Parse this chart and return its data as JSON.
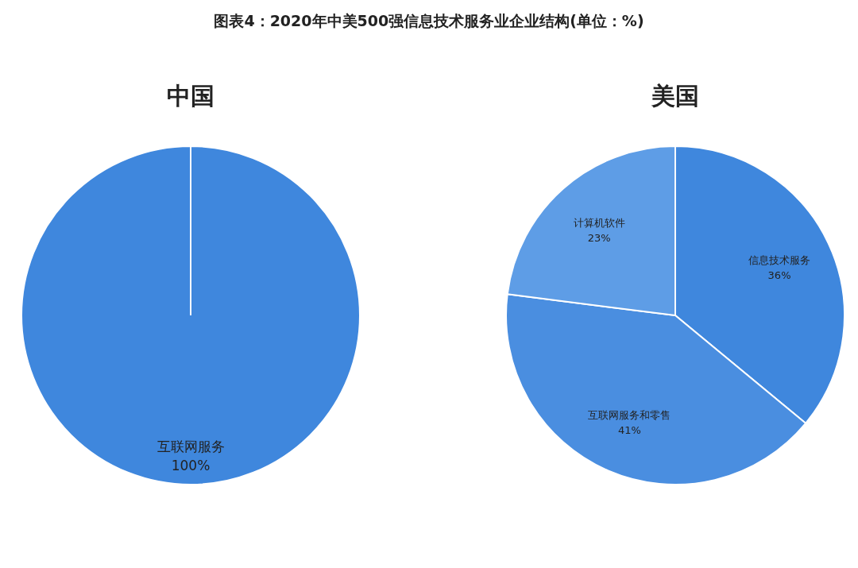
{
  "chart_data": [
    {
      "type": "other",
      "title": "图表4：2020年中美500强信息技术服务业企业结构(单位：%)"
    },
    {
      "type": "pie",
      "title": "中国",
      "categories": [
        "互联网服务"
      ],
      "values": [
        100
      ],
      "colors": [
        "#3f87dd"
      ],
      "value_labels": [
        "100%"
      ]
    },
    {
      "type": "pie",
      "title": "美国",
      "categories": [
        "信息技术服务",
        "互联网服务和零售",
        "计算机软件"
      ],
      "values": [
        36,
        41,
        23
      ],
      "colors": [
        "#3f87dd",
        "#4a8ee0",
        "#5e9de6"
      ],
      "value_labels": [
        "36%",
        "41%",
        "23%"
      ]
    }
  ]
}
